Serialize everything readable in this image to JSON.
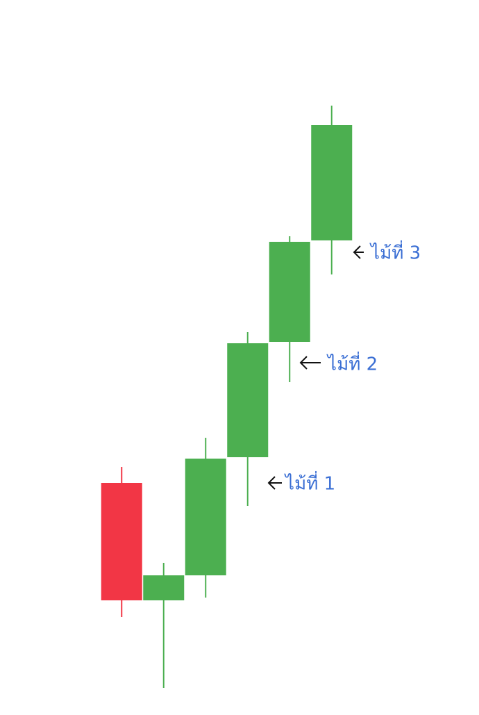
{
  "chart_data": {
    "type": "candlestick",
    "open": [
      30.5,
      13.6,
      17.2,
      34.2,
      50.8,
      65.4
    ],
    "close": [
      13.6,
      17.2,
      34.0,
      50.6,
      65.2,
      82.0
    ],
    "high": [
      32.8,
      19.0,
      37.0,
      52.2,
      66.0,
      84.8
    ],
    "low": [
      11.2,
      1.0,
      14.0,
      27.2,
      45.0,
      60.5
    ],
    "up_color": "#4caf50",
    "down_color": "#f23645",
    "ylim": [
      0,
      100
    ],
    "annotations": [
      {
        "text": "ไม้ที่ 1"
      },
      {
        "text": "ไม้ที่ 2"
      },
      {
        "text": "ไม้ที่ 3"
      }
    ]
  }
}
